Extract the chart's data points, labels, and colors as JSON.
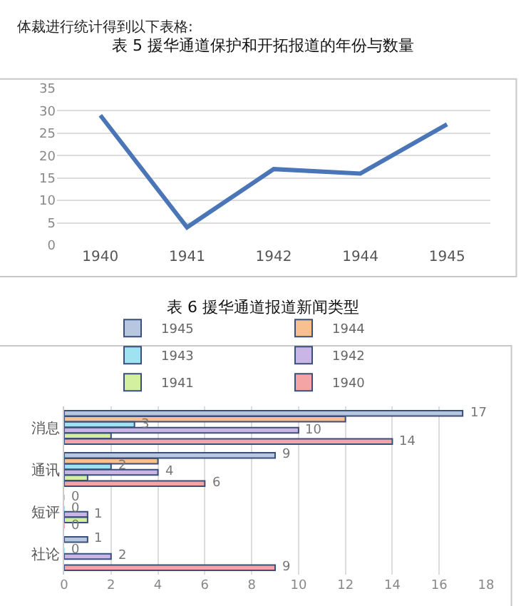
{
  "chart_data": [
    {
      "type": "line",
      "title": "表 5 援华通道保护和开拓报道的年份与数量",
      "annotations": [
        "体裁进行统计得到以下表格:"
      ],
      "categories": [
        "1940",
        "1941",
        "1942",
        "1944",
        "1945"
      ],
      "series": [
        {
          "color": "#4a76b8",
          "values": [
            29,
            4,
            17,
            16,
            27
          ]
        }
      ],
      "ylim": [
        0,
        35
      ],
      "yticks": [
        0,
        5,
        10,
        15,
        20,
        25,
        30,
        35
      ],
      "grid": "y",
      "legend": false,
      "marker": "none",
      "line_style": "solid"
    },
    {
      "type": "bar",
      "orientation": "horizontal",
      "title": "表 6 援华通道报道新闻类型",
      "categories": [
        "消息",
        "通讯",
        "短评",
        "社论"
      ],
      "series": [
        {
          "name": "1945",
          "color": "#b8c7e0",
          "values": [
            17,
            9,
            0,
            1
          ],
          "value_labels": [
            "17",
            "9",
            "0",
            "1"
          ]
        },
        {
          "name": "1944",
          "color": "#f9c08f",
          "values": [
            12,
            4,
            null,
            null
          ],
          "value_labels": [
            null,
            null,
            null,
            null
          ]
        },
        {
          "name": "1943",
          "color": "#9fe3f3",
          "values": [
            3,
            2,
            0,
            0
          ],
          "value_labels": [
            "3",
            "2",
            "0",
            "0"
          ]
        },
        {
          "name": "1942",
          "color": "#c9b6e6",
          "values": [
            10,
            4,
            1,
            2
          ],
          "value_labels": [
            "10",
            "4",
            "1",
            "2"
          ]
        },
        {
          "name": "1941",
          "color": "#d2f0a0",
          "values": [
            2,
            1,
            1,
            null
          ],
          "value_labels": [
            null,
            null,
            null,
            null
          ]
        },
        {
          "name": "1940",
          "color": "#f4a4a4",
          "values": [
            14,
            6,
            0,
            9
          ],
          "value_labels": [
            "14",
            "6",
            "0",
            "9"
          ]
        }
      ],
      "xlim": [
        0,
        18
      ],
      "xticks": [
        0,
        2,
        4,
        6,
        8,
        10,
        12,
        14,
        16,
        18
      ],
      "grid": "x",
      "legend": "top"
    }
  ]
}
